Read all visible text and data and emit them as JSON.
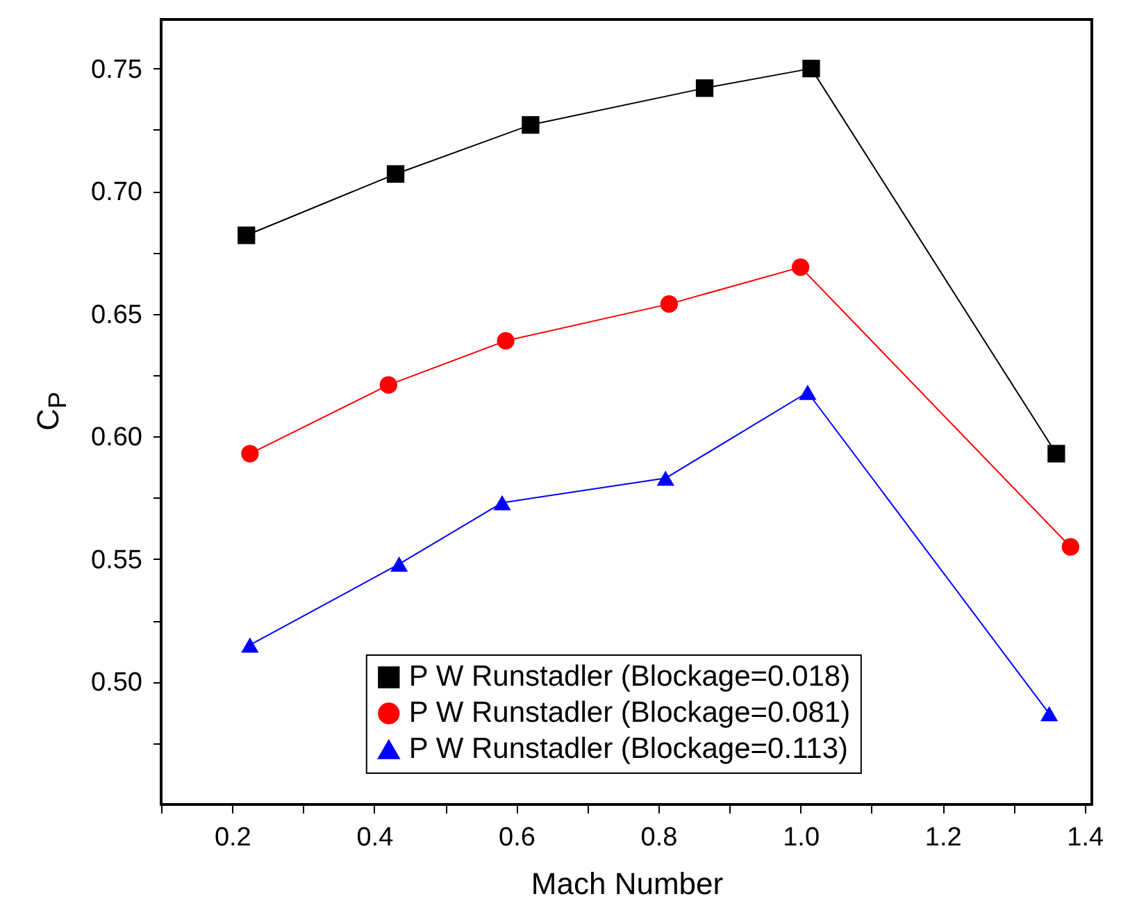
{
  "chart_data": {
    "type": "line",
    "xlabel": "Mach Number",
    "ylabel": "C$_{P}$",
    "xlim": [
      0.1,
      1.41
    ],
    "ylim": [
      0.45,
      0.77
    ],
    "xticks": [
      {
        "value": 0.1,
        "label": null
      },
      0.2,
      {
        "value": 0.3,
        "label": null
      },
      0.4,
      {
        "value": 0.5,
        "label": null
      },
      0.6,
      {
        "value": 0.7,
        "label": null
      },
      0.8,
      {
        "value": 0.9,
        "label": null
      },
      {
        "value": 1.0,
        "label": "1.0"
      },
      {
        "value": 1.1,
        "label": null
      },
      1.2,
      {
        "value": 1.3,
        "label": null
      },
      1.4
    ],
    "yticks": [
      {
        "value": 0.475,
        "label": null
      },
      {
        "value": 0.5,
        "label": "0.50"
      },
      {
        "value": 0.525,
        "label": null
      },
      0.55,
      {
        "value": 0.575,
        "label": null
      },
      {
        "value": 0.6,
        "label": "0.60"
      },
      {
        "value": 0.625,
        "label": null
      },
      0.65,
      {
        "value": 0.675,
        "label": null
      },
      {
        "value": 0.7,
        "label": "0.70"
      },
      {
        "value": 0.725,
        "label": null
      },
      0.75
    ],
    "grid": false,
    "legend": "bottom",
    "line_style": "solid",
    "series": [
      {
        "name": "P W Runstadler (Blockage=0.018)",
        "color": "#000000",
        "marker": "square",
        "x": [
          0.22,
          0.43,
          0.62,
          0.865,
          1.015,
          1.36
        ],
        "values": [
          0.682,
          0.707,
          0.727,
          0.742,
          0.75,
          0.593
        ]
      },
      {
        "name": "P W Runstadler (Blockage=0.081)",
        "color": "#ff0000",
        "marker": "circle",
        "x": [
          0.225,
          0.42,
          0.585,
          0.815,
          1.0,
          1.38
        ],
        "values": [
          0.593,
          0.621,
          0.639,
          0.654,
          0.669,
          0.555
        ]
      },
      {
        "name": "P W Runstadler (Blockage=0.113)",
        "color": "#0000ff",
        "marker": "triangle",
        "x": [
          0.225,
          0.435,
          0.58,
          0.81,
          1.01,
          1.35
        ],
        "values": [
          0.515,
          0.548,
          0.573,
          0.583,
          0.618,
          0.487
        ]
      }
    ]
  }
}
